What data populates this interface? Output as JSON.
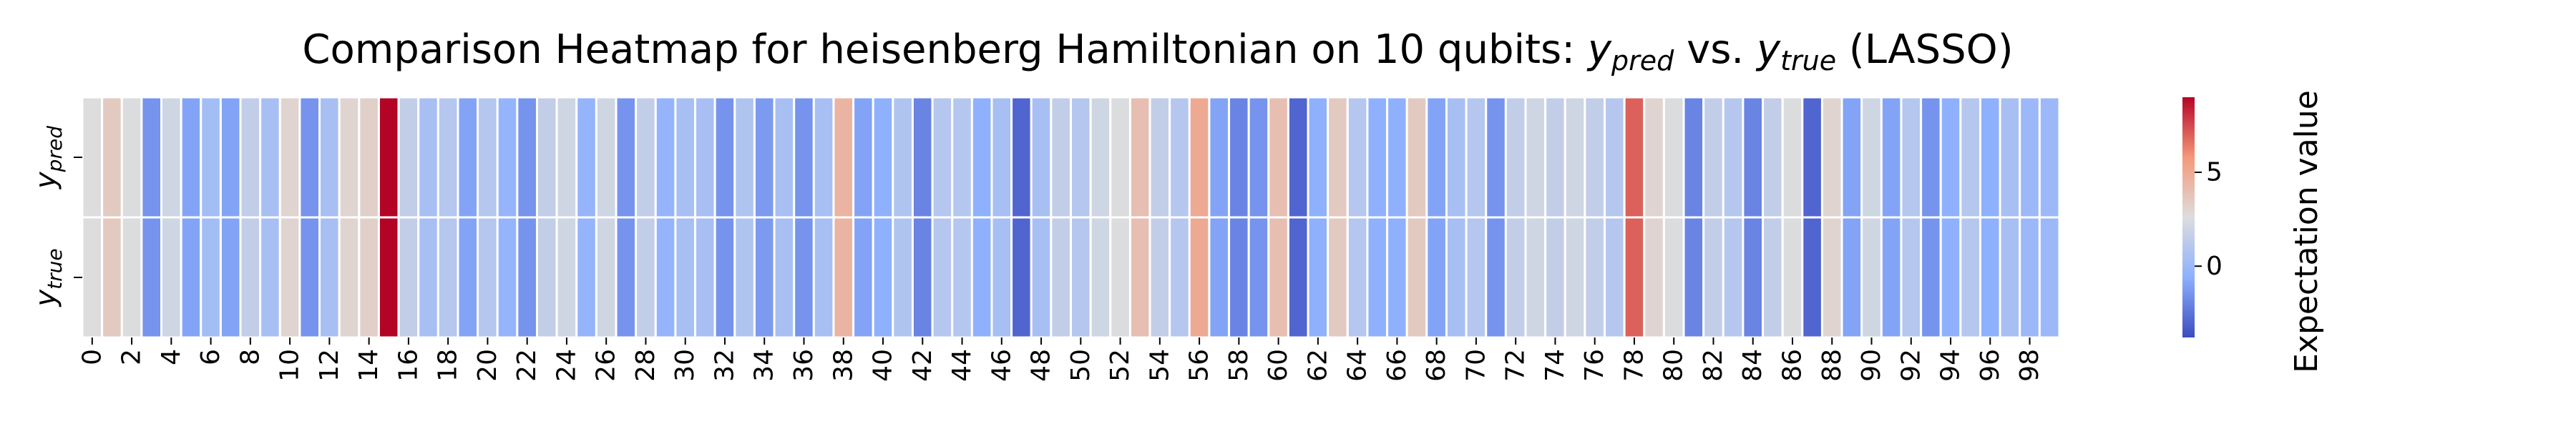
{
  "chart_data": {
    "type": "heatmap",
    "title": "Comparison Heatmap for heisenberg Hamiltonian on 10 qubits: y_pred vs. y_true (LASSO)",
    "title_parts": {
      "prefix": "Comparison Heatmap for heisenberg Hamiltonian on 10 qubits: ",
      "pred_base": "y",
      "pred_sub": "pred",
      "middle": " vs. ",
      "true_base": "y",
      "true_sub": "true",
      "suffix": " (LASSO)"
    },
    "rows": [
      {
        "base": "y",
        "sub": "pred"
      },
      {
        "base": "y",
        "sub": "true"
      }
    ],
    "x_tick_labels": [
      "0",
      "2",
      "4",
      "6",
      "8",
      "10",
      "12",
      "14",
      "16",
      "18",
      "20",
      "22",
      "24",
      "26",
      "28",
      "30",
      "32",
      "34",
      "36",
      "38",
      "40",
      "42",
      "44",
      "46",
      "48",
      "50",
      "52",
      "54",
      "56",
      "58",
      "60",
      "62",
      "64",
      "66",
      "68",
      "70",
      "72",
      "74",
      "76",
      "78",
      "80",
      "82",
      "84",
      "86",
      "88",
      "90",
      "92",
      "94",
      "96",
      "98"
    ],
    "x_tick_step": 2,
    "n_columns": 100,
    "colormap": "coolwarm",
    "vmin": -3.8,
    "vmax": 9.0,
    "colorbar": {
      "label": "Expectation value",
      "ticks": [
        0,
        5
      ]
    },
    "values_pred": [
      2.6,
      3.5,
      2.5,
      -1.5,
      2.0,
      -1.0,
      0.3,
      -1.0,
      1.5,
      0.5,
      3.0,
      -1.5,
      0.5,
      3.0,
      3.2,
      9.0,
      1.5,
      0.5,
      1.0,
      -1.0,
      1.0,
      -0.3,
      -1.5,
      1.5,
      2.0,
      -0.3,
      2.0,
      -1.5,
      1.5,
      -0.3,
      0.5,
      0.5,
      -1.5,
      0.8,
      -1.3,
      0.5,
      -1.5,
      0.5,
      4.5,
      -1.0,
      -0.5,
      0.8,
      -2.0,
      1.0,
      1.0,
      -0.5,
      0.5,
      -3.0,
      0.5,
      1.5,
      1.0,
      2.0,
      2.5,
      4.0,
      1.5,
      1.0,
      5.0,
      -1.0,
      -2.0,
      -1.5,
      4.0,
      -3.0,
      -0.5,
      3.5,
      1.0,
      -0.5,
      -0.5,
      3.5,
      -1.0,
      0.5,
      1.0,
      -1.5,
      1.5,
      2.0,
      1.5,
      2.0,
      1.5,
      1.0,
      7.0,
      3.0,
      2.5,
      -2.0,
      1.5,
      1.0,
      -2.0,
      1.5,
      2.5,
      -3.0,
      3.0,
      -1.0,
      2.0,
      -1.0,
      1.0,
      -1.5,
      -0.5,
      1.0,
      -0.5,
      0.5,
      0.0,
      0.0
    ],
    "values_true": [
      2.6,
      3.5,
      2.5,
      -1.5,
      2.0,
      -1.0,
      0.3,
      -1.0,
      1.5,
      0.5,
      3.0,
      -1.5,
      0.5,
      3.0,
      3.2,
      9.0,
      1.5,
      0.5,
      1.0,
      -1.0,
      1.0,
      -0.3,
      -1.5,
      1.5,
      2.0,
      -0.3,
      2.0,
      -1.5,
      1.5,
      -0.3,
      0.5,
      0.5,
      -1.5,
      0.8,
      -1.3,
      0.5,
      -1.5,
      0.5,
      4.5,
      -1.0,
      -0.5,
      0.8,
      -2.0,
      1.0,
      1.0,
      -0.5,
      0.5,
      -3.0,
      0.5,
      1.5,
      1.0,
      2.0,
      2.5,
      4.0,
      1.5,
      1.0,
      5.0,
      -1.0,
      -2.0,
      -1.5,
      4.0,
      -3.0,
      -0.5,
      3.5,
      1.0,
      -0.5,
      -0.5,
      3.5,
      -1.0,
      0.5,
      1.0,
      -1.5,
      1.5,
      2.0,
      1.5,
      2.0,
      1.5,
      1.0,
      7.0,
      3.0,
      2.5,
      -2.0,
      1.5,
      1.0,
      -2.0,
      1.5,
      2.5,
      -3.0,
      3.0,
      -1.0,
      2.0,
      -1.0,
      1.0,
      -1.5,
      -0.5,
      1.0,
      -0.5,
      0.5,
      0.0,
      0.0
    ]
  }
}
